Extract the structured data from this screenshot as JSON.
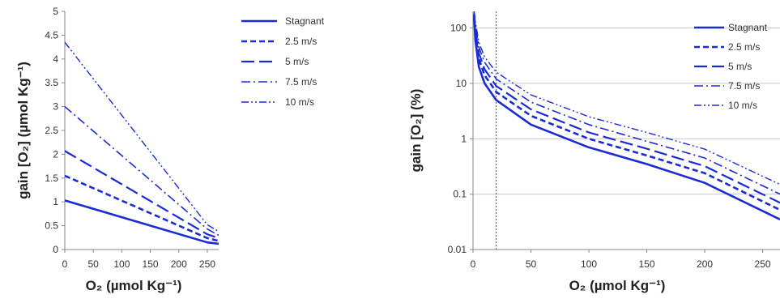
{
  "colors": {
    "series": "#1a2bd6",
    "axis": "#888888",
    "grid": "#c8c8c8"
  },
  "chart_data": [
    {
      "type": "line",
      "yscale": "linear",
      "xlabel": "O₂ (µmol Kg⁻¹)",
      "ylabel": "gain [O₂] (µmol Kg⁻¹)",
      "xlim": [
        0,
        270
      ],
      "ylim": [
        0,
        5
      ],
      "xticks": [
        0,
        50,
        100,
        150,
        200,
        250
      ],
      "xtick_labels": [
        "0",
        "50",
        "100",
        "150",
        "200",
        "250"
      ],
      "yticks": [
        0,
        0.5,
        1,
        1.5,
        2,
        2.5,
        3,
        3.5,
        4,
        4.5,
        5
      ],
      "ytick_labels": [
        "0",
        "0.5",
        "1",
        "1.5",
        "2",
        "2.5",
        "3",
        "3.5",
        "4",
        "4.5",
        "5"
      ],
      "grid": false,
      "legend_position": "top-right",
      "series": [
        {
          "name": "Stagnant",
          "dash": "solid",
          "x": [
            0,
            250,
            270
          ],
          "y": [
            1.03,
            0.15,
            0.12
          ]
        },
        {
          "name": "2.5 m/s",
          "dash": "short-dash",
          "x": [
            0,
            250,
            270
          ],
          "y": [
            1.55,
            0.24,
            0.18
          ]
        },
        {
          "name": "5 m/s",
          "dash": "long-dash",
          "x": [
            0,
            250,
            270
          ],
          "y": [
            2.07,
            0.32,
            0.24
          ]
        },
        {
          "name": "7.5 m/s",
          "dash": "dash-dot",
          "x": [
            0,
            250,
            270
          ],
          "y": [
            3.0,
            0.43,
            0.3
          ]
        },
        {
          "name": "10 m/s",
          "dash": "dash-dot-dot",
          "x": [
            0,
            250,
            270
          ],
          "y": [
            4.35,
            0.52,
            0.38
          ]
        }
      ]
    },
    {
      "type": "line",
      "yscale": "log",
      "xlabel": "O₂ (µmol Kg⁻¹)",
      "ylabel": "gain [O₂] (%)",
      "xlim": [
        0,
        265
      ],
      "ylim": [
        0.01,
        200
      ],
      "xticks": [
        0,
        50,
        100,
        150,
        200,
        250
      ],
      "xtick_labels": [
        "0",
        "50",
        "100",
        "150",
        "200",
        "250"
      ],
      "yticks": [
        0.01,
        0.1,
        1,
        10,
        100
      ],
      "ytick_labels": [
        "0.01",
        "0.1",
        "1",
        "10",
        "100"
      ],
      "grid": true,
      "reference_line_x": 20,
      "legend_position": "top-right",
      "series": [
        {
          "name": "Stagnant",
          "dash": "solid",
          "x": [
            1,
            2,
            5,
            10,
            20,
            50,
            100,
            150,
            200,
            265
          ],
          "y": [
            150,
            60,
            20,
            10,
            5,
            1.8,
            0.7,
            0.35,
            0.16,
            0.035
          ]
        },
        {
          "name": "2.5 m/s",
          "dash": "short-dash",
          "x": [
            1,
            2,
            5,
            10,
            20,
            50,
            100,
            150,
            200,
            265
          ],
          "y": [
            170,
            75,
            28,
            14,
            7,
            2.6,
            1.0,
            0.5,
            0.24,
            0.052
          ]
        },
        {
          "name": "5 m/s",
          "dash": "long-dash",
          "x": [
            1,
            2,
            5,
            10,
            20,
            50,
            100,
            150,
            200,
            265
          ],
          "y": [
            180,
            90,
            35,
            18,
            9,
            3.4,
            1.3,
            0.66,
            0.32,
            0.07
          ]
        },
        {
          "name": "7.5 m/s",
          "dash": "dash-dot",
          "x": [
            1,
            2,
            5,
            10,
            20,
            50,
            100,
            150,
            200,
            265
          ],
          "y": [
            190,
            110,
            45,
            24,
            12,
            4.6,
            1.8,
            0.9,
            0.45,
            0.1
          ]
        },
        {
          "name": "10 m/s",
          "dash": "dash-dot-dot",
          "x": [
            1,
            2,
            5,
            10,
            20,
            50,
            100,
            150,
            200,
            265
          ],
          "y": [
            200,
            130,
            55,
            30,
            16,
            6.2,
            2.5,
            1.3,
            0.65,
            0.15
          ]
        }
      ]
    }
  ]
}
